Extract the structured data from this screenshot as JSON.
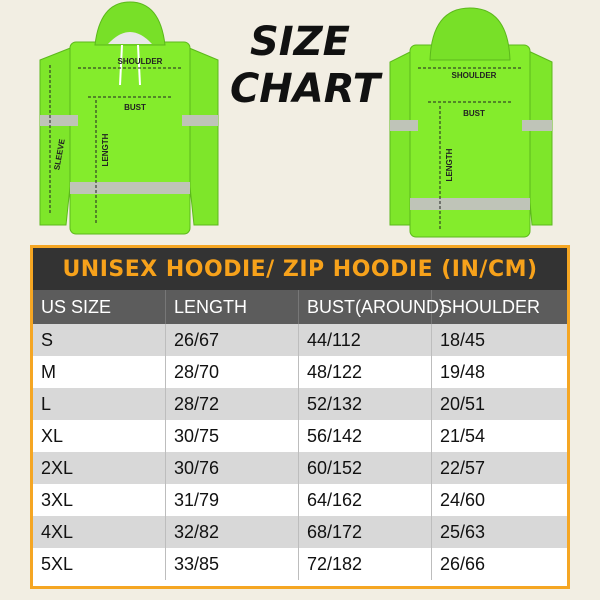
{
  "header": {
    "title_lines": [
      "SIZE",
      "CHART"
    ]
  },
  "front": {
    "labels": [
      "SHOULDER",
      "BUST",
      "SLEEVE",
      "LENGTH"
    ]
  },
  "back": {
    "labels": [
      "SHOULDER",
      "BUST",
      "LENGTH"
    ]
  },
  "table": {
    "title": "UNISEX HOODIE/ ZIP HOODIE (IN/CM)",
    "columns": [
      "US SIZE",
      "LENGTH",
      "BUST(AROUND)",
      "SHOULDER"
    ],
    "rows": [
      [
        "S",
        "26/67",
        "44/112",
        "18/45"
      ],
      [
        "M",
        "28/70",
        "48/122",
        "19/48"
      ],
      [
        "L",
        "28/72",
        "52/132",
        "20/51"
      ],
      [
        "XL",
        "30/75",
        "56/142",
        "21/54"
      ],
      [
        "2XL",
        "30/76",
        "60/152",
        "22/57"
      ],
      [
        "3XL",
        "31/79",
        "64/162",
        "24/60"
      ],
      [
        "4XL",
        "32/82",
        "68/172",
        "25/63"
      ],
      [
        "5XL",
        "33/85",
        "72/182",
        "26/66"
      ]
    ]
  }
}
